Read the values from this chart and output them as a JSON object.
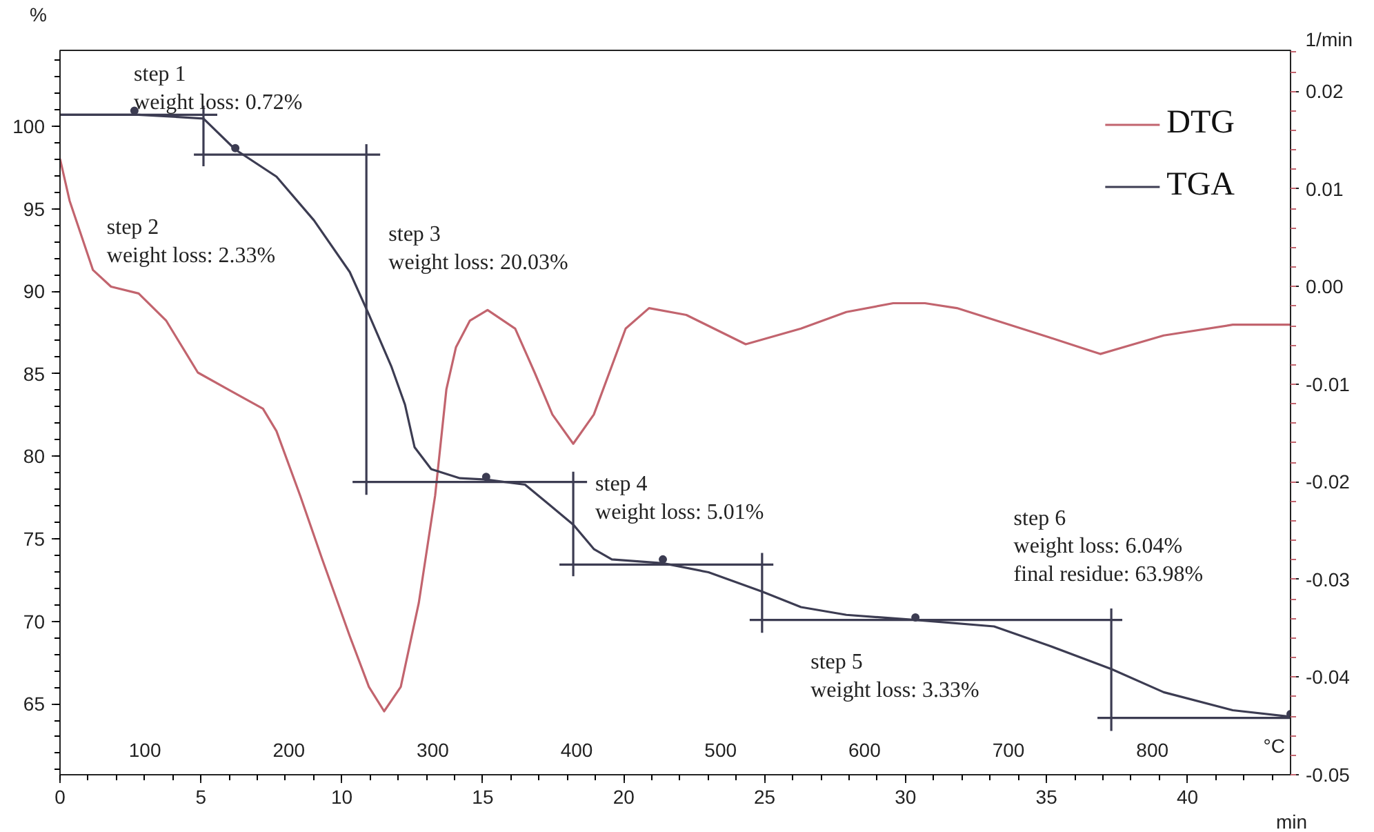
{
  "chart_data": {
    "type": "line",
    "xlabel": "min",
    "ylabel": "%",
    "y2label": "1/min",
    "x2label": "°C",
    "xlim": [
      0,
      43.66
    ],
    "xticks": [
      0,
      5,
      10,
      15,
      20,
      25,
      30,
      35,
      40
    ],
    "ylim": [
      60.7,
      104.6
    ],
    "yticks": [
      65,
      70,
      75,
      80,
      85,
      90,
      95,
      100
    ],
    "y2lim": [
      -0.05,
      0.0242
    ],
    "y2ticks": [
      {
        "value": -0.05,
        "label": "-0.05"
      },
      {
        "value": -0.04,
        "label": "-0.04"
      },
      {
        "value": -0.03,
        "label": "-0.03"
      },
      {
        "value": -0.02,
        "label": "-0.02"
      },
      {
        "value": -0.01,
        "label": "-0.01"
      },
      {
        "value": 0,
        "label": "0.00"
      },
      0.01,
      0.02
    ],
    "x2lim": [
      41,
      896
    ],
    "x2ticks": [
      100,
      200,
      300,
      400,
      500,
      600,
      700,
      800
    ],
    "legend": "top right",
    "series": [
      {
        "name": "DTG",
        "color": "#c2646e",
        "axis": "y2",
        "x": [
          0,
          0.34,
          1.17,
          1.81,
          2.79,
          3.77,
          4.89,
          6.07,
          7.2,
          7.68,
          8.52,
          9.3,
          10.28,
          10.96,
          11.5,
          12.09,
          12.73,
          13.31,
          13.71,
          14.05,
          14.54,
          15.17,
          16.15,
          16.84,
          17.47,
          18.21,
          18.94,
          20.07,
          20.9,
          22.22,
          24.33,
          26.29,
          27.9,
          29.56,
          30.69,
          31.82,
          35.1,
          36.91,
          39.16,
          41.61,
          43.66
        ],
        "values": [
          0.0131,
          0.0088,
          0.0017,
          0.0,
          -0.0007,
          -0.0035,
          -0.0088,
          -0.0107,
          -0.0125,
          -0.0148,
          -0.0214,
          -0.0279,
          -0.0358,
          -0.041,
          -0.0435,
          -0.041,
          -0.0324,
          -0.0214,
          -0.0105,
          -0.0062,
          -0.0035,
          -0.0024,
          -0.0043,
          -0.0088,
          -0.0131,
          -0.0161,
          -0.0131,
          -0.0043,
          -0.0022,
          -0.0029,
          -0.0059,
          -0.0043,
          -0.0026,
          -0.0017,
          -0.0017,
          -0.0022,
          -0.0052,
          -0.0069,
          -0.005,
          -0.0039,
          -0.0039
        ]
      },
      {
        "name": "TGA",
        "color": "#3c3c52",
        "x": [
          0,
          2.79,
          5.09,
          6.22,
          7.68,
          9.01,
          10.28,
          10.96,
          11.75,
          12.24,
          12.58,
          13.17,
          14.19,
          15.12,
          16.5,
          17.33,
          18.21,
          18.94,
          19.58,
          21.39,
          23.01,
          24.91,
          26.29,
          27.9,
          30.35,
          33.14,
          35.1,
          37.3,
          39.16,
          41.61,
          43.66
        ],
        "values": [
          100.7,
          100.7,
          100.47,
          98.59,
          96.95,
          94.3,
          91.17,
          88.59,
          85.47,
          83.13,
          80.55,
          79.22,
          78.67,
          78.59,
          78.28,
          77.11,
          75.86,
          74.38,
          73.75,
          73.52,
          72.97,
          71.8,
          70.86,
          70.39,
          70.08,
          69.69,
          68.52,
          67.11,
          65.7,
          64.61,
          64.22
        ]
      },
      {
        "color": "#3c3c52",
        "x": [
          0,
          5.58,
          null,
          5.09,
          5.09,
          null,
          4.75,
          11.36,
          null,
          10.87,
          10.87,
          null,
          10.38,
          18.7,
          null,
          18.21,
          18.21,
          null,
          17.72,
          25.31,
          null,
          24.91,
          24.91,
          null,
          24.47,
          37.69,
          null,
          37.3,
          37.3,
          null,
          36.81,
          43.66
        ],
        "values": [
          100.7,
          100.7,
          null,
          101.25,
          97.58,
          null,
          98.28,
          98.28,
          null,
          98.91,
          77.66,
          null,
          78.44,
          78.44,
          null,
          79.06,
          72.73,
          null,
          73.44,
          73.44,
          null,
          74.14,
          69.3,
          null,
          70.08,
          70.08,
          null,
          70.78,
          63.36,
          null,
          64.14,
          64.14
        ]
      },
      {
        "type": "scatter",
        "marker": "circle",
        "color": "#3c3c52",
        "x": [
          2.64,
          6.22,
          15.12,
          21.39,
          30.35,
          43.66
        ],
        "values": [
          100.94,
          98.67,
          78.75,
          73.75,
          70.23,
          64.38
        ]
      }
    ],
    "annotations": [
      "step 1\nweight loss: 0.72%",
      "step 2\nweight loss: 2.33%",
      "step 3\nweight loss: 20.03%",
      "step 4\nweight loss: 5.01%",
      "step 5\nweight loss: 3.33%",
      "step 6\nweight loss: 6.04%\nfinal residue: 63.98%"
    ]
  }
}
